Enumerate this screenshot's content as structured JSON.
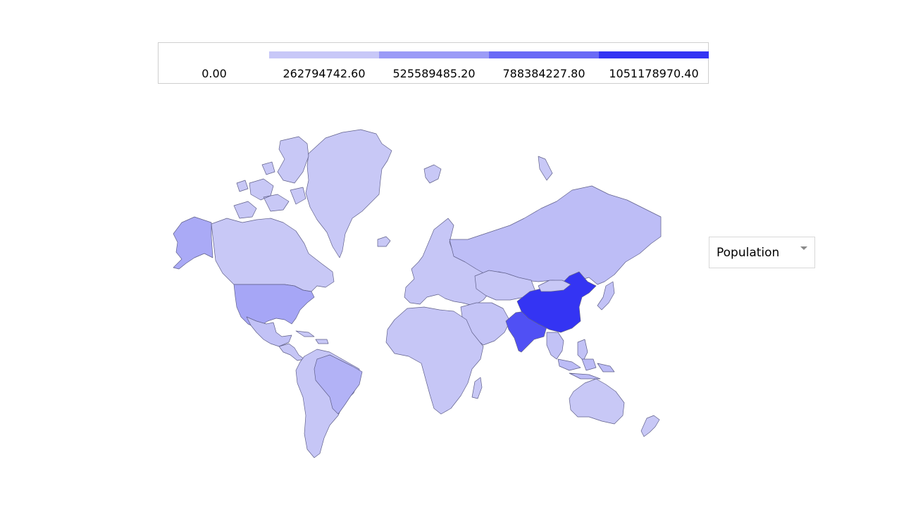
{
  "legend": {
    "bins": [
      {
        "label": "0.00",
        "color": "#ffffff"
      },
      {
        "label": "262794742.60",
        "color": "#c8c8f8"
      },
      {
        "label": "525589485.20",
        "color": "#9b9bf7"
      },
      {
        "label": "788384227.80",
        "color": "#6a6af6"
      },
      {
        "label": "1051178970.40",
        "color": "#3535f3"
      }
    ]
  },
  "selector": {
    "value": "Population",
    "options": [
      "Population"
    ]
  },
  "map": {
    "stroke_color": "#5f5f8a",
    "regions": [
      {
        "name": "Greenland",
        "fill": "#c8c8f6"
      },
      {
        "name": "Canada",
        "fill": "#c8c8f6"
      },
      {
        "name": "Alaska",
        "fill": "#aaaaf6"
      },
      {
        "name": "United States",
        "fill": "#a6a6f6"
      },
      {
        "name": "Mexico",
        "fill": "#c2c2f6"
      },
      {
        "name": "Central America",
        "fill": "#c6c6f6"
      },
      {
        "name": "Caribbean",
        "fill": "#c8c8f6"
      },
      {
        "name": "South America",
        "fill": "#c6c6f6"
      },
      {
        "name": "Brazil",
        "fill": "#b2b2f6"
      },
      {
        "name": "Iceland",
        "fill": "#c8c8f6"
      },
      {
        "name": "Europe",
        "fill": "#c6c6f6"
      },
      {
        "name": "Russia",
        "fill": "#bdbdf6"
      },
      {
        "name": "Central Asia",
        "fill": "#c6c6f6"
      },
      {
        "name": "Middle East",
        "fill": "#c4c4f6"
      },
      {
        "name": "Africa",
        "fill": "#c6c6f6"
      },
      {
        "name": "Madagascar",
        "fill": "#c8c8f6"
      },
      {
        "name": "India",
        "fill": "#5050f4"
      },
      {
        "name": "China",
        "fill": "#3434f3"
      },
      {
        "name": "Mongolia",
        "fill": "#c8c8f6"
      },
      {
        "name": "Southeast Asia",
        "fill": "#c2c2f6"
      },
      {
        "name": "Japan",
        "fill": "#c2c2f6"
      },
      {
        "name": "Indonesia",
        "fill": "#bcbcf6"
      },
      {
        "name": "Australia",
        "fill": "#c8c8f6"
      },
      {
        "name": "New Zealand",
        "fill": "#c8c8f6"
      },
      {
        "name": "Svalbard",
        "fill": "#c8c8f6"
      },
      {
        "name": "Novaya Zemlya",
        "fill": "#c8c8f6"
      }
    ]
  }
}
